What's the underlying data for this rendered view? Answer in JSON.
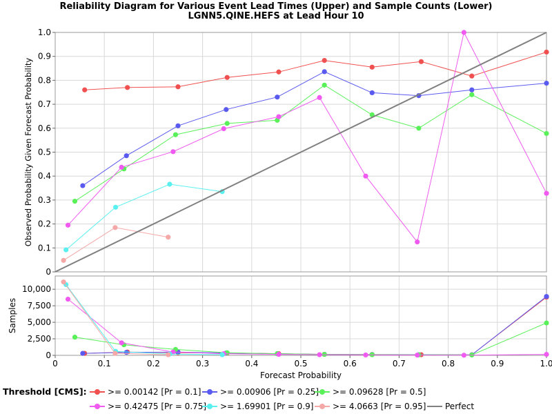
{
  "title_line1": "Reliability Diagram for Various Event Lead Times (Upper) and Sample Counts (Lower)",
  "title_line2": "LGNN5.QINE.HEFS at Lead Hour 10",
  "legend_title": "Threshold [CMS]:",
  "chart_data": [
    {
      "type": "line",
      "panel": "upper",
      "ylabel": "Observed Probability Given Forecast Probability",
      "xlabel": "",
      "xlim": [
        0,
        1
      ],
      "ylim": [
        0,
        1
      ],
      "x_ticks": [
        "0",
        "0.1",
        "0.2",
        "0.3",
        "0.4",
        "0.5",
        "0.6",
        "0.7",
        "0.8",
        "0.9",
        "1.0"
      ],
      "y_ticks": [
        "0",
        "0.1",
        "0.2",
        "0.3",
        "0.4",
        "0.5",
        "0.6",
        "0.7",
        "0.8",
        "0.9",
        "1.0"
      ],
      "grid": true,
      "series": [
        {
          "name": ">= 0.00142 [Pr = 0.1]",
          "color": "#f05050",
          "points": [
            [
              0.06,
              0.76
            ],
            [
              0.147,
              0.77
            ],
            [
              0.25,
              0.773
            ],
            [
              0.35,
              0.812
            ],
            [
              0.455,
              0.835
            ],
            [
              0.548,
              0.883
            ],
            [
              0.645,
              0.855
            ],
            [
              0.745,
              0.878
            ],
            [
              0.848,
              0.818
            ],
            [
              1.0,
              0.918
            ]
          ]
        },
        {
          "name": ">= 0.00906 [Pr = 0.25]",
          "color": "#5a5af0",
          "points": [
            [
              0.056,
              0.36
            ],
            [
              0.145,
              0.485
            ],
            [
              0.25,
              0.61
            ],
            [
              0.348,
              0.678
            ],
            [
              0.452,
              0.73
            ],
            [
              0.548,
              0.836
            ],
            [
              0.645,
              0.748
            ],
            [
              0.74,
              0.736
            ],
            [
              0.848,
              0.76
            ],
            [
              1.0,
              0.788
            ]
          ]
        },
        {
          "name": ">= 0.09628 [Pr = 0.5]",
          "color": "#5af05a",
          "points": [
            [
              0.04,
              0.295
            ],
            [
              0.14,
              0.43
            ],
            [
              0.245,
              0.573
            ],
            [
              0.35,
              0.62
            ],
            [
              0.452,
              0.633
            ],
            [
              0.548,
              0.78
            ],
            [
              0.645,
              0.656
            ],
            [
              0.74,
              0.6
            ],
            [
              0.848,
              0.74
            ],
            [
              1.0,
              0.578
            ]
          ]
        },
        {
          "name": ">= 0.42475 [Pr = 0.75]",
          "color": "#f05af0",
          "points": [
            [
              0.026,
              0.195
            ],
            [
              0.135,
              0.437
            ],
            [
              0.24,
              0.502
            ],
            [
              0.343,
              0.598
            ],
            [
              0.455,
              0.648
            ],
            [
              0.538,
              0.728
            ],
            [
              0.632,
              0.4
            ],
            [
              0.737,
              0.125
            ],
            [
              0.832,
              1.0
            ],
            [
              1.0,
              0.328
            ]
          ]
        },
        {
          "name": ">= 1.69901 [Pr = 0.9]",
          "color": "#5af0f0",
          "points": [
            [
              0.022,
              0.092
            ],
            [
              0.123,
              0.27
            ],
            [
              0.233,
              0.366
            ],
            [
              0.34,
              0.335
            ]
          ]
        },
        {
          "name": ">= 4.0663 [Pr = 0.95]",
          "color": "#f5a8a8",
          "points": [
            [
              0.017,
              0.048
            ],
            [
              0.122,
              0.185
            ],
            [
              0.23,
              0.145
            ]
          ]
        },
        {
          "name": "Perfect",
          "color": "#808080",
          "points": [
            [
              0,
              0
            ],
            [
              1,
              1
            ]
          ]
        }
      ]
    },
    {
      "type": "line",
      "panel": "lower",
      "xlabel": "Forecast Probability",
      "ylabel": "Samples",
      "xlim": [
        0,
        1
      ],
      "ylim": [
        0,
        12000
      ],
      "x_ticks": [
        "0",
        "0.1",
        "0.2",
        "0.3",
        "0.4",
        "0.5",
        "0.6",
        "0.7",
        "0.8",
        "0.9",
        "1.0"
      ],
      "y_ticks": [
        "0",
        "2,500",
        "5,000",
        "7,500",
        "10,000"
      ],
      "y_tick_values": [
        0,
        2500,
        5000,
        7500,
        10000
      ],
      "grid": true,
      "series": [
        {
          "name": ">= 0.00142 [Pr = 0.1]",
          "color": "#f05050",
          "points": [
            [
              0.06,
              300
            ],
            [
              0.147,
              500
            ],
            [
              0.25,
              400
            ],
            [
              0.35,
              350
            ],
            [
              0.455,
              250
            ],
            [
              0.548,
              150
            ],
            [
              0.645,
              120
            ],
            [
              0.745,
              100
            ],
            [
              0.848,
              80
            ],
            [
              1.0,
              8800
            ]
          ]
        },
        {
          "name": ">= 0.00906 [Pr = 0.25]",
          "color": "#5a5af0",
          "points": [
            [
              0.056,
              300
            ],
            [
              0.145,
              450
            ],
            [
              0.25,
              500
            ],
            [
              0.348,
              350
            ],
            [
              0.452,
              250
            ],
            [
              0.548,
              150
            ],
            [
              0.645,
              120
            ],
            [
              0.74,
              100
            ],
            [
              0.848,
              80
            ],
            [
              1.0,
              8900
            ]
          ]
        },
        {
          "name": ">= 0.09628 [Pr = 0.5]",
          "color": "#5af05a",
          "points": [
            [
              0.04,
              2750
            ],
            [
              0.14,
              1600
            ],
            [
              0.245,
              900
            ],
            [
              0.35,
              400
            ],
            [
              0.452,
              250
            ],
            [
              0.548,
              150
            ],
            [
              0.645,
              100
            ],
            [
              0.74,
              80
            ],
            [
              0.848,
              60
            ],
            [
              1.0,
              4900
            ]
          ]
        },
        {
          "name": ">= 0.42475 [Pr = 0.75]",
          "color": "#f05af0",
          "points": [
            [
              0.026,
              8500
            ],
            [
              0.135,
              1900
            ],
            [
              0.24,
              500
            ],
            [
              0.343,
              250
            ],
            [
              0.455,
              150
            ],
            [
              0.538,
              100
            ],
            [
              0.632,
              60
            ],
            [
              0.737,
              40
            ],
            [
              0.832,
              20
            ],
            [
              1.0,
              150
            ]
          ]
        },
        {
          "name": ">= 1.69901 [Pr = 0.9]",
          "color": "#5af0f0",
          "points": [
            [
              0.022,
              10700
            ],
            [
              0.123,
              600
            ],
            [
              0.233,
              200
            ],
            [
              0.34,
              100
            ]
          ]
        },
        {
          "name": ">= 4.0663 [Pr = 0.95]",
          "color": "#f5a8a8",
          "points": [
            [
              0.017,
              11100
            ],
            [
              0.122,
              300
            ],
            [
              0.23,
              100
            ]
          ]
        }
      ]
    }
  ]
}
